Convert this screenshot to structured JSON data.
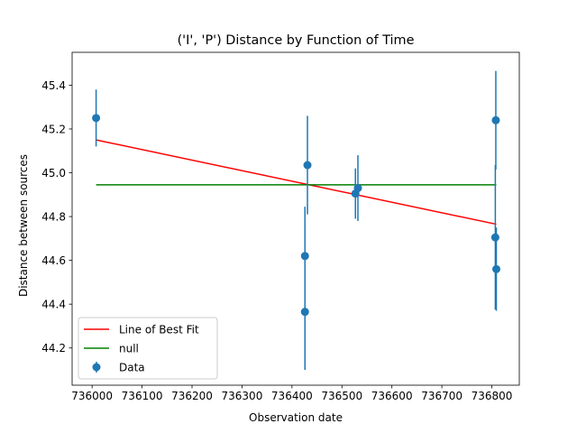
{
  "chart_data": {
    "type": "scatter",
    "title": "('I', 'P') Distance by Function of Time",
    "xlabel": "Observation date",
    "ylabel": "Distance between sources",
    "xlim": [
      735960,
      736855
    ],
    "ylim": [
      44.03,
      45.55
    ],
    "xticks": [
      736000,
      736100,
      736200,
      736300,
      736400,
      736500,
      736600,
      736700,
      736800
    ],
    "yticks": [
      44.2,
      44.4,
      44.6,
      44.8,
      45.0,
      45.2,
      45.4
    ],
    "legend_position": "lower-left",
    "legend": [
      "Line of Best Fit",
      "null",
      "Data"
    ],
    "series": [
      {
        "name": "Data",
        "kind": "errorbar",
        "color": "#1f77b4",
        "x": [
          736008,
          736426,
          736426,
          736431,
          736527,
          736532,
          736807,
          736808,
          736809
        ],
        "y": [
          45.25,
          44.62,
          44.365,
          45.035,
          44.905,
          44.93,
          44.705,
          45.24,
          44.56
        ],
        "yerr": [
          0.13,
          0.225,
          0.265,
          0.225,
          0.115,
          0.15,
          0.33,
          0.225,
          0.19
        ]
      },
      {
        "name": "Line of Best Fit",
        "kind": "line",
        "color": "#ff0000",
        "x": [
          736008,
          736809
        ],
        "y": [
          45.15,
          44.765
        ]
      },
      {
        "name": "null",
        "kind": "line",
        "color": "#008000",
        "x": [
          736008,
          736809
        ],
        "y": [
          44.945,
          44.945
        ]
      }
    ]
  }
}
